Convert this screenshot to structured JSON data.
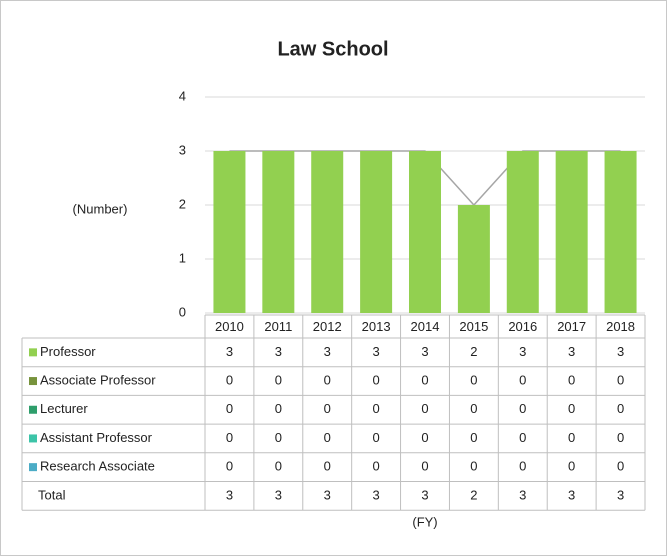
{
  "chart_data": {
    "type": "bar",
    "stacked": true,
    "data_table": true,
    "title": "Law School",
    "y_label": "(Number)",
    "x_label": "(FY)",
    "categories": [
      "2010",
      "2011",
      "2012",
      "2013",
      "2014",
      "2015",
      "2016",
      "2017",
      "2018"
    ],
    "series": [
      {
        "name": "Professor",
        "color": "#92d050",
        "kind": "bar",
        "values": [
          3,
          3,
          3,
          3,
          3,
          2,
          3,
          3,
          3
        ]
      },
      {
        "name": "Associate Professor",
        "color": "#77933c",
        "kind": "bar",
        "values": [
          0,
          0,
          0,
          0,
          0,
          0,
          0,
          0,
          0
        ]
      },
      {
        "name": "Lecturer",
        "color": "#2e9e6b",
        "kind": "bar",
        "values": [
          0,
          0,
          0,
          0,
          0,
          0,
          0,
          0,
          0
        ]
      },
      {
        "name": "Assistant Professor",
        "color": "#3cc4a8",
        "kind": "bar",
        "values": [
          0,
          0,
          0,
          0,
          0,
          0,
          0,
          0,
          0
        ]
      },
      {
        "name": "Research Associate",
        "color": "#4bacc6",
        "kind": "bar",
        "values": [
          0,
          0,
          0,
          0,
          0,
          0,
          0,
          0,
          0
        ]
      },
      {
        "name": "Total",
        "color": "#a6a6a6",
        "kind": "line",
        "values": [
          3,
          3,
          3,
          3,
          3,
          2,
          3,
          3,
          3
        ]
      }
    ],
    "ylim": [
      0,
      4
    ],
    "yticks": [
      0,
      1,
      2,
      3,
      4
    ],
    "grid": true
  }
}
